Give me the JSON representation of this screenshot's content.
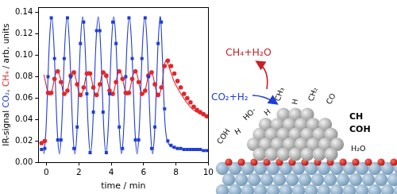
{
  "chart_data": {
    "type": "scatter",
    "x_label": "time / min",
    "y_label": "IR-signal CO₂, CH₄ / arb. units",
    "xlim": [
      -0.5,
      10
    ],
    "xticks": [
      0,
      2,
      4,
      6,
      8,
      10
    ],
    "ylim": [
      0,
      0.145
    ],
    "yticks": [
      {
        "value": 0,
        "label": "0.00"
      },
      {
        "value": 0.02,
        "label": "0.02"
      },
      {
        "value": 0.04,
        "label": "0.04"
      },
      {
        "value": 0.06,
        "label": "0.06"
      },
      {
        "value": 0.08,
        "label": "0.08"
      },
      {
        "value": 0.1,
        "label": "0.10"
      },
      {
        "value": 0.12,
        "label": "0.12"
      },
      {
        "value": 0.14,
        "label": "0.14"
      }
    ],
    "grid": false,
    "series": [
      {
        "name": "CO₂",
        "color": "#1e3cd8",
        "marker": "square",
        "line_style": "none",
        "x": [
          -0.3,
          -0.1,
          0.1,
          0.3,
          0.5,
          0.7,
          0.9,
          1.1,
          1.3,
          1.5,
          1.7,
          1.9,
          2.1,
          2.3,
          2.5,
          2.7,
          2.9,
          3.1,
          3.3,
          3.5,
          3.7,
          3.9,
          4.1,
          4.3,
          4.5,
          4.7,
          4.9,
          5.1,
          5.3,
          5.5,
          5.7,
          5.9,
          6.1,
          6.3,
          6.5,
          6.7,
          6.9,
          7.1,
          7.3,
          7.5,
          7.7,
          7.9,
          8.1,
          8.3,
          8.5,
          8.7,
          8.9,
          9.1,
          9.3,
          9.5,
          9.7,
          9.9
        ],
        "values": [
          0.012,
          0.013,
          0.08,
          0.135,
          0.097,
          0.021,
          0.021,
          0.097,
          0.135,
          0.08,
          0.013,
          0.033,
          0.111,
          0.131,
          0.064,
          0.009,
          0.047,
          0.123,
          0.123,
          0.047,
          0.009,
          0.064,
          0.131,
          0.111,
          0.033,
          0.013,
          0.08,
          0.135,
          0.097,
          0.021,
          0.021,
          0.097,
          0.135,
          0.08,
          0.013,
          0.033,
          0.111,
          0.131,
          0.05,
          0.02,
          0.016,
          0.014,
          0.013,
          0.013,
          0.012,
          0.012,
          0.012,
          0.012,
          0.012,
          0.012,
          0.011,
          0.011
        ]
      },
      {
        "name": "CH₄",
        "color": "#e3262b",
        "marker": "circle",
        "line_style": "none",
        "x": [
          -0.3,
          -0.1,
          0.1,
          0.3,
          0.5,
          0.7,
          0.9,
          1.1,
          1.3,
          1.5,
          1.7,
          1.9,
          2.1,
          2.3,
          2.5,
          2.7,
          2.9,
          3.1,
          3.3,
          3.5,
          3.7,
          3.9,
          4.1,
          4.3,
          4.5,
          4.7,
          4.9,
          5.1,
          5.3,
          5.5,
          5.7,
          5.9,
          6.1,
          6.3,
          6.5,
          6.7,
          6.9,
          7.1,
          7.3,
          7.5,
          7.7,
          7.9,
          8.1,
          8.3,
          8.5,
          8.7,
          8.9,
          9.1,
          9.3,
          9.5,
          9.7,
          9.9
        ],
        "values": [
          0.018,
          0.02,
          0.065,
          0.065,
          0.078,
          0.085,
          0.075,
          0.064,
          0.067,
          0.081,
          0.084,
          0.073,
          0.063,
          0.07,
          0.083,
          0.083,
          0.07,
          0.063,
          0.073,
          0.084,
          0.081,
          0.067,
          0.064,
          0.075,
          0.085,
          0.078,
          0.065,
          0.065,
          0.078,
          0.085,
          0.075,
          0.064,
          0.067,
          0.081,
          0.084,
          0.073,
          0.063,
          0.07,
          0.09,
          0.095,
          0.09,
          0.083,
          0.076,
          0.07,
          0.064,
          0.06,
          0.056,
          0.052,
          0.049,
          0.047,
          0.045,
          0.043
        ]
      },
      {
        "color": "#1e3cd8",
        "marker": "none",
        "line_style": "solid",
        "x": [
          -0.16,
          -0.04,
          0.08,
          0.2,
          0.32,
          0.44,
          0.56,
          0.68,
          0.8,
          0.92,
          1.04,
          1.16,
          1.28,
          1.4,
          1.52,
          1.64,
          1.76,
          1.88,
          2.0,
          2.12,
          2.24,
          2.36,
          2.48,
          2.6,
          2.72,
          2.84,
          2.96,
          3.08,
          3.2,
          3.32,
          3.44,
          3.56,
          3.68,
          3.8,
          3.92,
          4.04,
          4.16,
          4.28,
          4.4,
          4.52,
          4.64,
          4.76,
          4.88,
          5.0,
          5.12,
          5.24,
          5.36,
          5.48,
          5.6,
          5.72,
          5.84,
          5.96,
          6.08,
          6.2,
          6.32,
          6.44,
          6.56,
          6.68,
          6.8,
          6.92,
          7.04,
          7.16,
          7.28,
          7.4,
          7.6,
          8.0,
          9.0,
          10.0
        ],
        "values": [
          0.008,
          0.027,
          0.072,
          0.117,
          0.136,
          0.117,
          0.072,
          0.027,
          0.008,
          0.027,
          0.072,
          0.117,
          0.136,
          0.117,
          0.072,
          0.027,
          0.008,
          0.027,
          0.072,
          0.117,
          0.136,
          0.117,
          0.072,
          0.027,
          0.008,
          0.027,
          0.072,
          0.117,
          0.136,
          0.117,
          0.072,
          0.027,
          0.008,
          0.027,
          0.072,
          0.117,
          0.136,
          0.117,
          0.072,
          0.027,
          0.008,
          0.027,
          0.072,
          0.117,
          0.136,
          0.117,
          0.072,
          0.027,
          0.008,
          0.027,
          0.072,
          0.117,
          0.136,
          0.117,
          0.072,
          0.027,
          0.008,
          0.027,
          0.072,
          0.117,
          0.136,
          0.1,
          0.05,
          0.025,
          0.016,
          0.013,
          0.012,
          0.011
        ]
      },
      {
        "color": "#e3262b",
        "marker": "none",
        "line_style": "solid",
        "x": [
          -0.16,
          -0.04,
          0.08,
          0.2,
          0.32,
          0.44,
          0.56,
          0.68,
          0.8,
          0.92,
          1.04,
          1.16,
          1.28,
          1.4,
          1.52,
          1.64,
          1.76,
          1.88,
          2.0,
          2.12,
          2.24,
          2.36,
          2.48,
          2.6,
          2.72,
          2.84,
          2.96,
          3.08,
          3.2,
          3.32,
          3.44,
          3.56,
          3.68,
          3.8,
          3.92,
          4.04,
          4.16,
          4.28,
          4.4,
          4.52,
          4.64,
          4.76,
          4.88,
          5.0,
          5.12,
          5.24,
          5.36,
          5.48,
          5.6,
          5.72,
          5.84,
          5.96,
          6.08,
          6.2,
          6.32,
          6.44,
          6.56,
          6.68,
          6.8,
          6.92,
          7.04,
          7.16,
          7.28,
          7.4,
          7.6,
          8.0,
          9.0,
          10.0
        ],
        "values": [
          0.082,
          0.074,
          0.066,
          0.063,
          0.066,
          0.074,
          0.082,
          0.085,
          0.082,
          0.074,
          0.066,
          0.063,
          0.066,
          0.074,
          0.082,
          0.085,
          0.082,
          0.074,
          0.066,
          0.063,
          0.066,
          0.074,
          0.082,
          0.085,
          0.082,
          0.074,
          0.066,
          0.063,
          0.066,
          0.074,
          0.082,
          0.085,
          0.082,
          0.074,
          0.066,
          0.063,
          0.066,
          0.074,
          0.082,
          0.085,
          0.082,
          0.074,
          0.066,
          0.063,
          0.066,
          0.074,
          0.082,
          0.085,
          0.082,
          0.074,
          0.066,
          0.063,
          0.066,
          0.074,
          0.082,
          0.085,
          0.082,
          0.074,
          0.066,
          0.063,
          0.066,
          0.074,
          0.09,
          0.095,
          0.088,
          0.072,
          0.05,
          0.042
        ]
      }
    ]
  },
  "diagram": {
    "products": "CH₄+H₂O",
    "reactants": "CO₂+H₂",
    "adsorbates": [
      "COH",
      "H",
      "HO-",
      "H",
      "CH₃",
      "H",
      "CH₂",
      "CO",
      "CH",
      "COH",
      "H₂O"
    ]
  }
}
